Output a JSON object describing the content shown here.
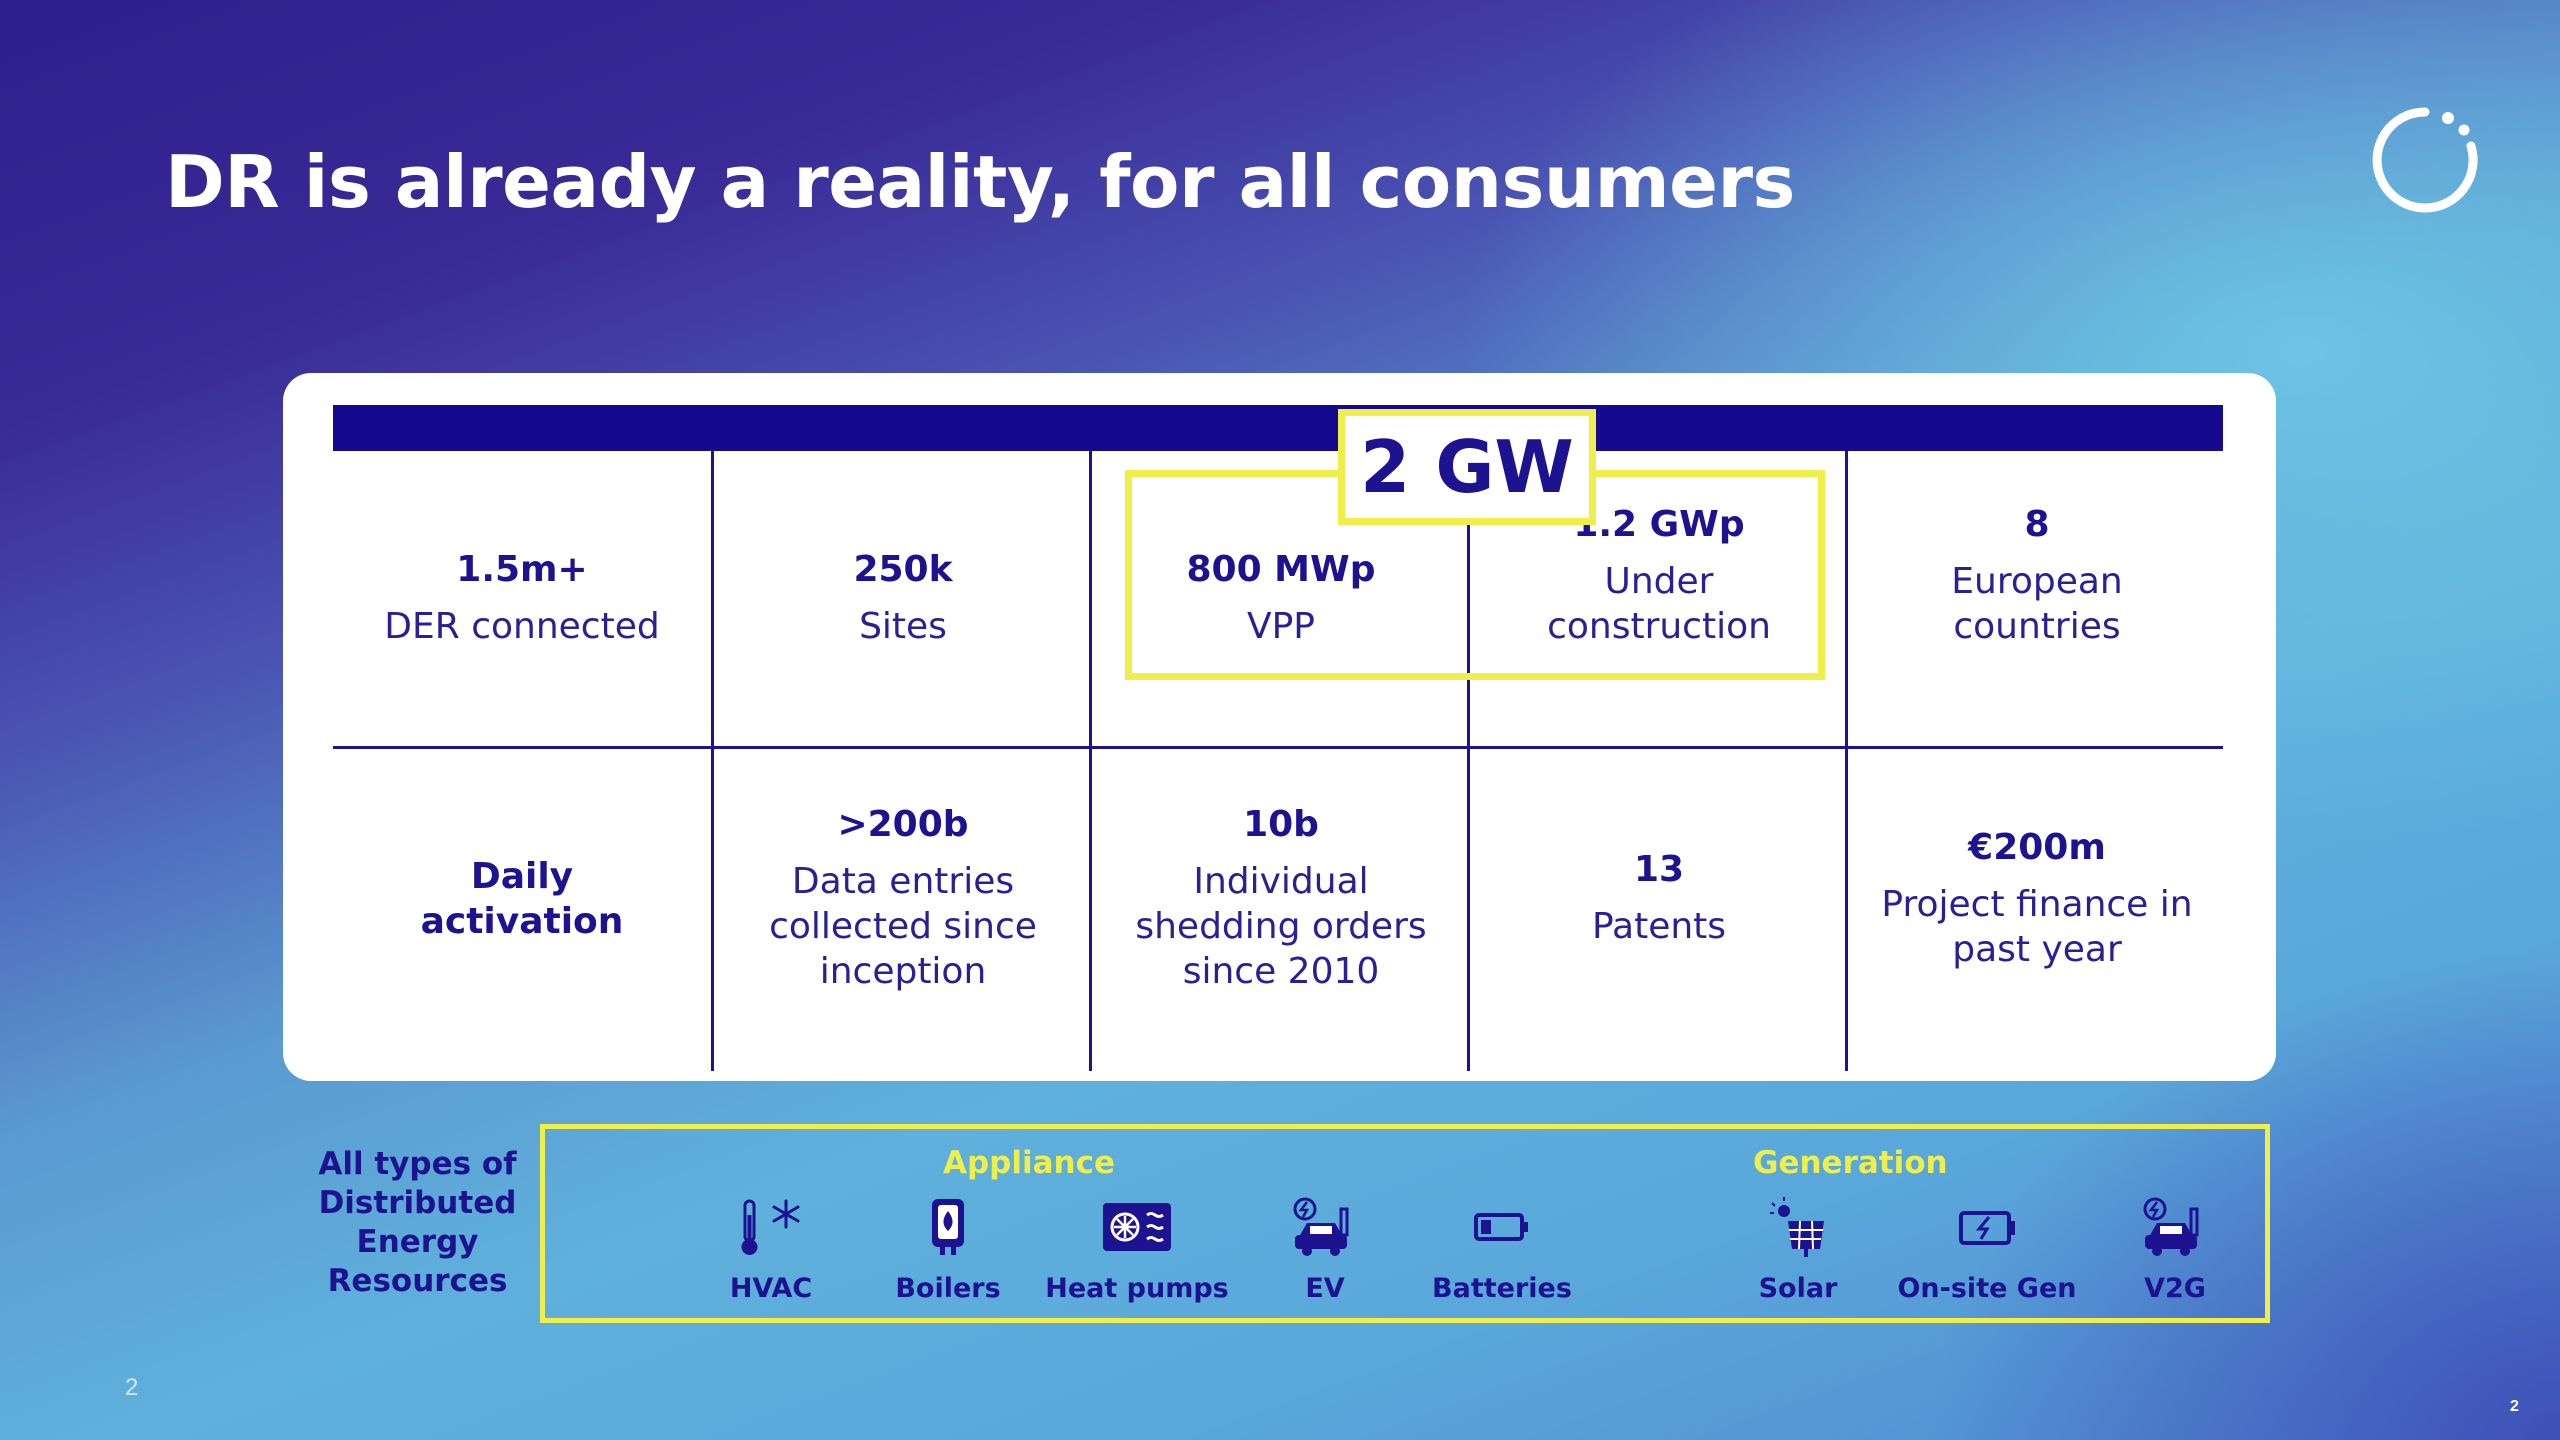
{
  "slide": {
    "title": "DR is already a reality, for all consumers",
    "page_number": "2",
    "page_number_corner": "2"
  },
  "badge": {
    "text": "2 GW"
  },
  "metrics_row1": [
    {
      "value": "1.5m+",
      "label": "DER connected"
    },
    {
      "value": "250k",
      "label": "Sites"
    },
    {
      "value": "800 MWp",
      "label": "VPP"
    },
    {
      "value": "1.2 GWp",
      "label_line1": "Under",
      "label_line2": "construction"
    },
    {
      "value": "8",
      "label_line1": "European",
      "label_line2": "countries"
    }
  ],
  "metrics_row2": [
    {
      "label_line1": "Daily",
      "label_line2": "activation"
    },
    {
      "value": ">200b",
      "label_line1": "Data entries",
      "label_line2": "collected since",
      "label_line3": "inception"
    },
    {
      "value": "10b",
      "label_line1": "Individual",
      "label_line2": "shedding orders",
      "label_line3": "since 2010"
    },
    {
      "value": "13",
      "label": "Patents"
    },
    {
      "value": "€200m",
      "label_line1": "Project finance in",
      "label_line2": "past year"
    }
  ],
  "der": {
    "label_lines": [
      "All types of",
      "Distributed",
      "Energy",
      "Resources"
    ],
    "appliance_title": "Appliance",
    "generation_title": "Generation",
    "appliance_items": [
      {
        "label": "HVAC",
        "icon": "thermometer-snowflake-icon"
      },
      {
        "label": "Boilers",
        "icon": "boiler-icon"
      },
      {
        "label": "Heat pumps",
        "icon": "heat-pump-icon"
      },
      {
        "label": "EV",
        "icon": "electric-car-icon"
      },
      {
        "label": "Batteries",
        "icon": "battery-icon"
      }
    ],
    "generation_items": [
      {
        "label": "Solar",
        "icon": "solar-panel-icon"
      },
      {
        "label": "On-site Gen",
        "icon": "generator-icon"
      },
      {
        "label": "V2G",
        "icon": "vehicle-to-grid-icon"
      }
    ]
  },
  "colors": {
    "navy": "#1d128f",
    "header_bar": "#150a8f",
    "highlight_yellow": "#f0ee4a",
    "card_bg": "#ffffff"
  }
}
